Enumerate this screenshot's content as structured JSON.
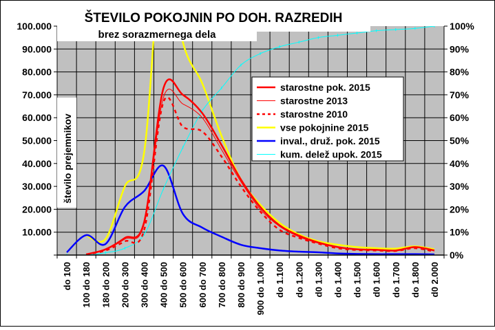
{
  "chart_data": {
    "type": "line",
    "title": "ŠTEVILO POKOJNIN PO DOH. RAZREDIH",
    "subtitle": "brez sorazmernega dela",
    "ylabel": "število prejemnikov",
    "ylim": [
      0,
      100000
    ],
    "y2lim": [
      0,
      100
    ],
    "grid": true,
    "legend_position": "right",
    "yticks": [
      "0",
      "10.000",
      "20.000",
      "30.000",
      "40.000",
      "50.000",
      "60.000",
      "70.000",
      "80.000",
      "90.000",
      "100.000"
    ],
    "y2ticks": [
      "0%",
      "10%",
      "20%",
      "30%",
      "40%",
      "50%",
      "60%",
      "70%",
      "80%",
      "90%",
      "100%"
    ],
    "categories": [
      "do 100",
      "100 do 180",
      "180 do 200",
      "200 do 300",
      "300 do 400",
      "400 do 500",
      "500 do 600",
      "600 do 700",
      "700 do 800",
      "800 do 900",
      "900 do 1.000",
      "do 1.100",
      "do 1.200",
      "d0 1.300",
      "do 1.400",
      "do 1.500",
      "d0 1.600",
      "do 1.700",
      "do 1.800",
      "d0 2.000"
    ],
    "series": [
      {
        "name": "starostne pok. 2015",
        "color": "#ff0000",
        "style": "thick",
        "axis": "left",
        "values": [
          null,
          300,
          2500,
          7500,
          14500,
          73000,
          70000,
          62000,
          48000,
          33000,
          21000,
          13000,
          8500,
          5500,
          3500,
          2500,
          2300,
          2000,
          3500,
          2000
        ]
      },
      {
        "name": "starostne 2013",
        "color": "#ff0000",
        "style": "thin",
        "axis": "left",
        "values": [
          null,
          300,
          2300,
          7000,
          13500,
          69000,
          66000,
          60000,
          46000,
          32000,
          20000,
          12500,
          8000,
          5200,
          3300,
          2400,
          2200,
          1900,
          3300,
          1900
        ]
      },
      {
        "name": "starostne 2010",
        "color": "#ff0000",
        "style": "dashed",
        "axis": "left",
        "values": [
          null,
          200,
          2000,
          6000,
          11000,
          67000,
          56000,
          54000,
          43000,
          30000,
          19000,
          11000,
          7500,
          5000,
          3000,
          2200,
          2000,
          1800,
          3000,
          1500
        ]
      },
      {
        "name": "vse pokojnine 2015",
        "color": "#ffff00",
        "style": "thick",
        "axis": "left",
        "values": [
          null,
          8700,
          7000,
          30000,
          45000,
          140000,
          93000,
          75000,
          52000,
          33000,
          22000,
          14000,
          9000,
          6000,
          4500,
          3500,
          3000,
          2800,
          3800,
          2500
        ]
      },
      {
        "name": "inval., druž. pok. 2015",
        "color": "#0000ff",
        "style": "thick",
        "axis": "left",
        "values": [
          1200,
          8700,
          4800,
          21000,
          28000,
          39000,
          18000,
          12000,
          8000,
          4500,
          3000,
          2000,
          1500,
          1200,
          700,
          500,
          400,
          400,
          400,
          300
        ]
      },
      {
        "name": "kum. delež upok. 2015",
        "color": "#00ffff",
        "style": "marker",
        "axis": "right",
        "values": [
          0,
          0,
          1,
          3,
          9,
          29,
          47,
          63,
          73,
          83,
          88,
          91,
          93,
          95,
          96,
          97,
          98,
          98.5,
          99,
          100
        ]
      }
    ]
  }
}
